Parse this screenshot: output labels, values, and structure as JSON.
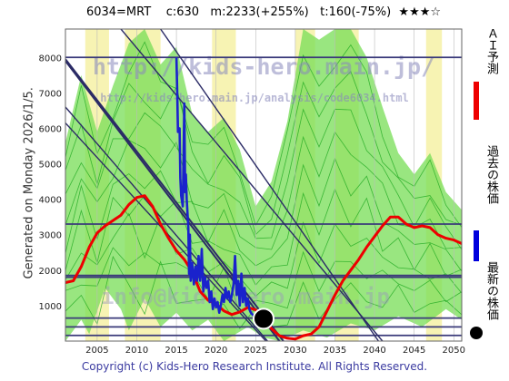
{
  "header": {
    "title": "6034=MRT    c:630   m:2233(+255%)   t:160(-75%)  ★★★☆"
  },
  "side": {
    "generated": "Generated on Monday 2026/1/5."
  },
  "footer": {
    "copyright": "Copyright (c) Kids-Hero Research Institute. All Rights Reserved."
  },
  "watermark": {
    "line1": "http://kids-hero.main.jp/",
    "line2": "http://kids-hero.main.jp/analysis/code6034.html",
    "line3": "info@kids-hero.main.jp"
  },
  "legend": {
    "items": [
      {
        "label": "ＡＩ予測",
        "color": "#ee0000",
        "shape": "bar"
      },
      {
        "label": "過去の株価",
        "color": "#0000dd",
        "shape": "bar"
      },
      {
        "label": "最新の株価",
        "color": "#000000",
        "shape": "dot"
      }
    ]
  },
  "colors": {
    "ai": "#ee0000",
    "past": "#1a22cc",
    "band": "#77dd55",
    "bandLine": "#22aa22",
    "yellow": "#f5f0a0",
    "trend": "#2b2b66",
    "hline": "#3a3a7a"
  },
  "chart_data": {
    "type": "line",
    "xlim": [
      2001,
      2051
    ],
    "ylim": [
      0,
      8800
    ],
    "xticks": [
      2005,
      2010,
      2015,
      2020,
      2025,
      2030,
      2035,
      2040,
      2045,
      2050
    ],
    "yticks": [
      1000,
      2000,
      3000,
      4000,
      5000,
      6000,
      7000,
      8000
    ],
    "hlines": [
      8000,
      3300,
      1850,
      1800,
      650,
      400,
      160
    ],
    "trendlines": [
      [
        [
          2001,
          7950
        ],
        [
          2028.5,
          0
        ]
      ],
      [
        [
          2001,
          7900
        ],
        [
          2028,
          0
        ]
      ],
      [
        [
          2001,
          6600
        ],
        [
          2026.5,
          0
        ]
      ],
      [
        [
          2001,
          6150
        ],
        [
          2026.3,
          0
        ]
      ],
      [
        [
          2008,
          8800
        ],
        [
          2041,
          0
        ]
      ],
      [
        [
          2013,
          8800
        ],
        [
          2040.5,
          0
        ]
      ]
    ],
    "series": [
      {
        "name": "ＡＩ予測",
        "points": [
          [
            2001,
            1650
          ],
          [
            2002,
            1700
          ],
          [
            2003,
            2100
          ],
          [
            2004,
            2650
          ],
          [
            2005,
            3050
          ],
          [
            2006,
            3250
          ],
          [
            2007,
            3400
          ],
          [
            2008,
            3550
          ],
          [
            2009,
            3850
          ],
          [
            2010,
            4050
          ],
          [
            2011,
            4100
          ],
          [
            2012,
            3800
          ],
          [
            2013,
            3300
          ],
          [
            2014,
            2900
          ],
          [
            2015,
            2550
          ],
          [
            2016,
            2300
          ],
          [
            2017,
            1950
          ],
          [
            2018,
            1400
          ],
          [
            2019,
            1150
          ],
          [
            2020,
            1050
          ],
          [
            2021,
            850
          ],
          [
            2022,
            750
          ],
          [
            2023,
            820
          ],
          [
            2024,
            950
          ],
          [
            2025,
            880
          ],
          [
            2026,
            650
          ],
          [
            2027,
            350
          ],
          [
            2028,
            150
          ],
          [
            2029,
            80
          ],
          [
            2030,
            60
          ],
          [
            2031,
            150
          ],
          [
            2032,
            200
          ],
          [
            2033,
            400
          ],
          [
            2034,
            850
          ],
          [
            2035,
            1300
          ],
          [
            2036,
            1700
          ],
          [
            2037,
            2000
          ],
          [
            2038,
            2300
          ],
          [
            2039,
            2650
          ],
          [
            2040,
            2950
          ],
          [
            2041,
            3250
          ],
          [
            2042,
            3500
          ],
          [
            2043,
            3500
          ],
          [
            2044,
            3300
          ],
          [
            2045,
            3200
          ],
          [
            2046,
            3250
          ],
          [
            2047,
            3200
          ],
          [
            2048,
            3000
          ],
          [
            2049,
            2900
          ],
          [
            2050,
            2850
          ],
          [
            2051,
            2750
          ]
        ]
      },
      {
        "name": "過去の株価",
        "points": [
          [
            2015.0,
            8000
          ],
          [
            2015.1,
            7000
          ],
          [
            2015.2,
            5900
          ],
          [
            2015.4,
            6000
          ],
          [
            2015.5,
            4600
          ],
          [
            2015.6,
            4100
          ],
          [
            2015.8,
            3800
          ],
          [
            2016.0,
            6700
          ],
          [
            2016.1,
            4200
          ],
          [
            2016.2,
            4700
          ],
          [
            2016.3,
            4000
          ],
          [
            2016.5,
            3200
          ],
          [
            2016.6,
            1900
          ],
          [
            2016.7,
            3000
          ],
          [
            2016.8,
            1700
          ],
          [
            2017.0,
            2200
          ],
          [
            2017.2,
            1600
          ],
          [
            2017.4,
            2100
          ],
          [
            2017.6,
            1700
          ],
          [
            2017.8,
            2400
          ],
          [
            2018.0,
            1700
          ],
          [
            2018.2,
            2600
          ],
          [
            2018.4,
            1400
          ],
          [
            2018.6,
            1800
          ],
          [
            2018.8,
            1500
          ],
          [
            2019.0,
            1700
          ],
          [
            2019.2,
            1100
          ],
          [
            2019.4,
            1400
          ],
          [
            2019.6,
            900
          ],
          [
            2019.8,
            1200
          ],
          [
            2020.0,
            950
          ],
          [
            2020.2,
            1100
          ],
          [
            2020.4,
            800
          ],
          [
            2020.6,
            1000
          ],
          [
            2020.8,
            1300
          ],
          [
            2021.0,
            1100
          ],
          [
            2021.2,
            1500
          ],
          [
            2021.4,
            1200
          ],
          [
            2021.6,
            1400
          ],
          [
            2021.8,
            1100
          ],
          [
            2022.0,
            1300
          ],
          [
            2022.2,
            1600
          ],
          [
            2022.4,
            2400
          ],
          [
            2022.6,
            1300
          ],
          [
            2022.8,
            1700
          ],
          [
            2023.0,
            1000
          ],
          [
            2023.2,
            1900
          ],
          [
            2023.4,
            1100
          ],
          [
            2023.6,
            1500
          ],
          [
            2023.8,
            1000
          ],
          [
            2024.0,
            1200
          ],
          [
            2024.2,
            900
          ],
          [
            2024.4,
            800
          ],
          [
            2024.6,
            750
          ],
          [
            2024.8,
            700
          ],
          [
            2025.0,
            700
          ]
        ]
      }
    ],
    "bands": [
      [
        [
          2001,
          0
        ],
        [
          2003,
          600
        ],
        [
          2004,
          200
        ],
        [
          2006,
          1500
        ],
        [
          2008,
          900
        ],
        [
          2009,
          300
        ],
        [
          2011,
          1200
        ],
        [
          2013,
          400
        ],
        [
          2015,
          800
        ],
        [
          2017,
          300
        ],
        [
          2019,
          600
        ],
        [
          2021,
          0
        ],
        [
          2024,
          400
        ],
        [
          2026,
          100
        ],
        [
          2028,
          0
        ],
        [
          2031,
          300
        ],
        [
          2034,
          100
        ],
        [
          2037,
          500
        ],
        [
          2040,
          300
        ],
        [
          2043,
          700
        ],
        [
          2046,
          400
        ],
        [
          2049,
          900
        ],
        [
          2051,
          600
        ]
      ],
      [
        [
          2001,
          5600
        ],
        [
          2003,
          7500
        ],
        [
          2005,
          5900
        ],
        [
          2007,
          7200
        ],
        [
          2009,
          8400
        ],
        [
          2011,
          8800
        ],
        [
          2013,
          7800
        ],
        [
          2015,
          8300
        ],
        [
          2017,
          6400
        ],
        [
          2019,
          5900
        ],
        [
          2021,
          6300
        ],
        [
          2023,
          5400
        ],
        [
          2025,
          3800
        ],
        [
          2027,
          4500
        ],
        [
          2029,
          6200
        ],
        [
          2031,
          8800
        ],
        [
          2033,
          8500
        ],
        [
          2035,
          8800
        ],
        [
          2037,
          8800
        ],
        [
          2039,
          8000
        ],
        [
          2041,
          6600
        ],
        [
          2043,
          5300
        ],
        [
          2045,
          4700
        ],
        [
          2047,
          5300
        ],
        [
          2049,
          4200
        ],
        [
          2051,
          3700
        ]
      ]
    ],
    "yellow_bands": [
      [
        2003.5,
        2006.5
      ],
      [
        2008.5,
        2013
      ],
      [
        2019.5,
        2022.5
      ],
      [
        2030,
        2032.5
      ],
      [
        2035,
        2038
      ],
      [
        2046.5,
        2048.5
      ]
    ],
    "latest": {
      "x": 2026,
      "y": 630
    }
  }
}
